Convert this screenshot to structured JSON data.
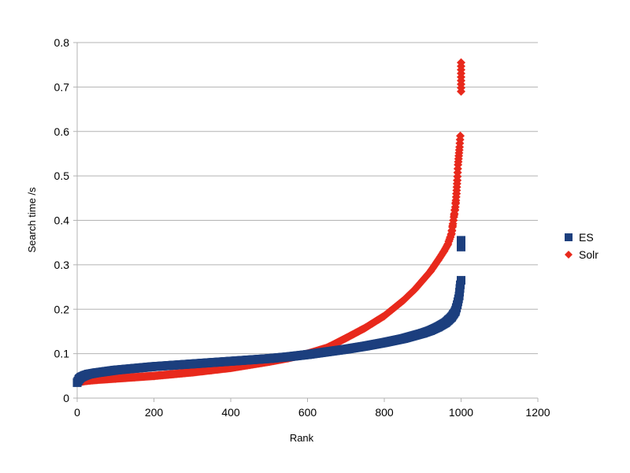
{
  "chart_data": {
    "type": "scatter",
    "xlabel": "Rank",
    "ylabel": "Search time /s",
    "xlim": [
      0,
      1200
    ],
    "ylim": [
      0,
      0.8
    ],
    "x_ticks": [
      0,
      200,
      400,
      600,
      800,
      1000,
      1200
    ],
    "y_ticks": [
      0,
      0.1,
      0.2,
      0.3,
      0.4,
      0.5,
      0.6,
      0.7,
      0.8
    ],
    "x_tick_labels": [
      "0",
      "200",
      "400",
      "600",
      "800",
      "1000",
      "1200"
    ],
    "y_tick_labels": [
      "0",
      "0.1",
      "0.2",
      "0.3",
      "0.4",
      "0.5",
      "0.6",
      "0.7",
      "0.8"
    ],
    "grid": "horizontal",
    "legend_position": "right",
    "series": [
      {
        "name": "ES",
        "marker": "square",
        "color": "#1c3f7e",
        "points": [
          [
            0,
            0.035
          ],
          [
            5,
            0.043
          ],
          [
            10,
            0.047
          ],
          [
            20,
            0.051
          ],
          [
            30,
            0.054
          ],
          [
            50,
            0.057
          ],
          [
            75,
            0.06
          ],
          [
            100,
            0.063
          ],
          [
            150,
            0.067
          ],
          [
            200,
            0.071
          ],
          [
            250,
            0.074
          ],
          [
            300,
            0.077
          ],
          [
            350,
            0.08
          ],
          [
            400,
            0.083
          ],
          [
            450,
            0.086
          ],
          [
            500,
            0.089
          ],
          [
            550,
            0.093
          ],
          [
            600,
            0.098
          ],
          [
            650,
            0.104
          ],
          [
            700,
            0.11
          ],
          [
            750,
            0.117
          ],
          [
            800,
            0.125
          ],
          [
            850,
            0.134
          ],
          [
            900,
            0.146
          ],
          [
            920,
            0.152
          ],
          [
            940,
            0.16
          ],
          [
            960,
            0.17
          ],
          [
            975,
            0.182
          ],
          [
            985,
            0.195
          ],
          [
            990,
            0.21
          ],
          [
            995,
            0.23
          ],
          [
            998,
            0.255
          ],
          [
            1000,
            0.265
          ],
          [
            1000,
            0.34
          ],
          [
            1000,
            0.355
          ]
        ]
      },
      {
        "name": "Solr",
        "marker": "diamond",
        "color": "#e8291c",
        "points": [
          [
            0,
            0.035
          ],
          [
            10,
            0.037
          ],
          [
            25,
            0.039
          ],
          [
            50,
            0.041
          ],
          [
            100,
            0.044
          ],
          [
            150,
            0.047
          ],
          [
            200,
            0.05
          ],
          [
            250,
            0.054
          ],
          [
            300,
            0.058
          ],
          [
            350,
            0.063
          ],
          [
            400,
            0.068
          ],
          [
            450,
            0.075
          ],
          [
            500,
            0.082
          ],
          [
            550,
            0.09
          ],
          [
            600,
            0.1
          ],
          [
            650,
            0.113
          ],
          [
            700,
            0.135
          ],
          [
            750,
            0.158
          ],
          [
            800,
            0.185
          ],
          [
            850,
            0.22
          ],
          [
            880,
            0.245
          ],
          [
            900,
            0.265
          ],
          [
            920,
            0.285
          ],
          [
            940,
            0.31
          ],
          [
            955,
            0.33
          ],
          [
            965,
            0.345
          ],
          [
            975,
            0.37
          ],
          [
            980,
            0.4
          ],
          [
            985,
            0.43
          ],
          [
            988,
            0.46
          ],
          [
            990,
            0.49
          ],
          [
            992,
            0.525
          ],
          [
            994,
            0.545
          ],
          [
            996,
            0.565
          ],
          [
            998,
            0.59
          ],
          [
            1000,
            0.69
          ],
          [
            1000,
            0.755
          ]
        ]
      }
    ]
  }
}
